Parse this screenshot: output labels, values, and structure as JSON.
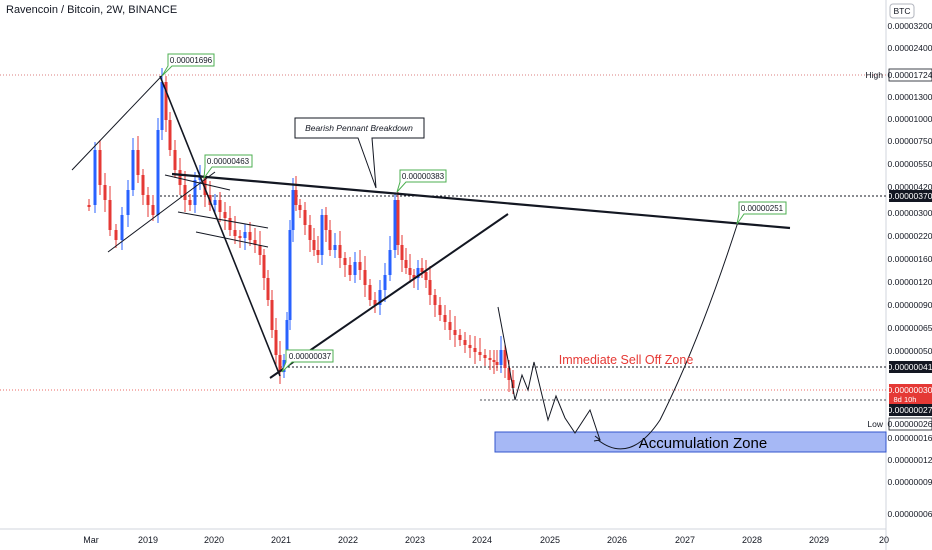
{
  "header": {
    "title": "Ravencoin / Bitcoin, 2W, BINANCE"
  },
  "chart_data": {
    "type": "candlestick",
    "title": "Ravencoin / Bitcoin, 2W, BINANCE",
    "currency": "BTC",
    "y_ticks": [
      "0.00003200",
      "0.00002400",
      "0.00001724",
      "0.00001300",
      "0.00001000",
      "0.00000750",
      "0.00000550",
      "0.00000420",
      "0.00000370",
      "0.00000300",
      "0.00000220",
      "0.00000160",
      "0.00000120",
      "0.00000090",
      "0.00000065",
      "0.00000050",
      "0.00000041",
      "0.00000030",
      "0.00000027",
      "0.00000026",
      "0.00000016",
      "0.00000012",
      "0.00000009",
      "0.00000006"
    ],
    "x_ticks": [
      "Mar",
      "2019",
      "2020",
      "2021",
      "2022",
      "2023",
      "2024",
      "2025",
      "2026",
      "2027",
      "2028",
      "2029",
      "20"
    ],
    "axis_badges": {
      "high_label": "High",
      "high_value": "0.00001724",
      "resistance_value": "0.00000370",
      "support_value": "0.00000041",
      "current_price": "0.00000030",
      "countdown": "8d 10h",
      "level_below": "0.00000027",
      "low_label": "Low",
      "low_value": "0.00000026"
    },
    "callouts": [
      {
        "text": "0.00001696"
      },
      {
        "text": "0.00000463"
      },
      {
        "text": "0.00000383"
      },
      {
        "text": "0.00000037"
      },
      {
        "text": "0.00000251"
      }
    ],
    "annotations": {
      "pennant": "Bearish Pennant Breakdown",
      "sell_zone": "Immediate Sell Off Zone",
      "accumulation": "Accumulation Zone"
    },
    "colors": {
      "up": "#2962ff",
      "down": "#e53935",
      "sell_text": "#e53935",
      "accumulation_fill": "#a6b8f5",
      "accumulation_border": "#3355cc",
      "callout_border": "#4caf50"
    }
  }
}
